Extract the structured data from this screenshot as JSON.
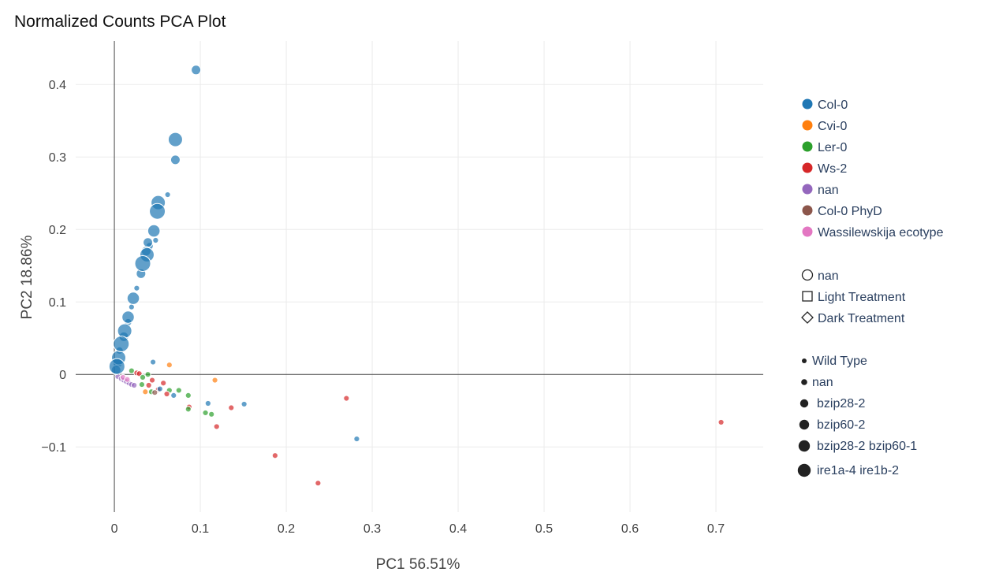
{
  "chart_data": {
    "type": "scatter",
    "title": "Normalized Counts PCA Plot",
    "xlabel": "PC1 56.51%",
    "ylabel": "PC2 18.86%",
    "xlim": [
      -0.045,
      0.755
    ],
    "ylim": [
      -0.19,
      0.46
    ],
    "x_ticks": [
      0,
      0.1,
      0.2,
      0.3,
      0.4,
      0.5,
      0.6,
      0.7
    ],
    "x_tick_labels": [
      "0",
      "0.1",
      "0.2",
      "0.3",
      "0.4",
      "0.5",
      "0.6",
      "0.7"
    ],
    "y_ticks": [
      -0.1,
      0,
      0.1,
      0.2,
      0.3,
      0.4
    ],
    "y_tick_labels": [
      "−0.1",
      "0",
      "0.1",
      "0.2",
      "0.3",
      "0.4"
    ],
    "grid": true,
    "legend_position": "right",
    "color_legend": [
      {
        "label": "Col-0",
        "color": "#1f77b4"
      },
      {
        "label": "Cvi-0",
        "color": "#ff7f0e"
      },
      {
        "label": "Ler-0",
        "color": "#2ca02c"
      },
      {
        "label": "Ws-2",
        "color": "#d62728"
      },
      {
        "label": "nan",
        "color": "#9467bd"
      },
      {
        "label": "Col-0 PhyD",
        "color": "#8c564b"
      },
      {
        "label": "Wassilewskija ecotype",
        "color": "#e377c2"
      }
    ],
    "shape_legend": [
      {
        "label": "nan",
        "symbol": "circle"
      },
      {
        "label": "Light Treatment",
        "symbol": "square"
      },
      {
        "label": "Dark Treatment",
        "symbol": "diamond"
      }
    ],
    "size_legend": [
      {
        "label": "Wild Type",
        "size": 1
      },
      {
        "label": "nan",
        "size": 2
      },
      {
        "label": "bzip28-2",
        "size": 3
      },
      {
        "label": "bzip60-2",
        "size": 4
      },
      {
        "label": "bzip28-2 bzip60-1",
        "size": 5
      },
      {
        "label": "ire1a-4 ire1b-2",
        "size": 6
      }
    ],
    "points": [
      {
        "x": 0.095,
        "y": 0.42,
        "color": "#1f77b4",
        "size": 3
      },
      {
        "x": 0.071,
        "y": 0.324,
        "color": "#1f77b4",
        "size": 5
      },
      {
        "x": 0.071,
        "y": 0.296,
        "color": "#1f77b4",
        "size": 3
      },
      {
        "x": 0.062,
        "y": 0.248,
        "color": "#1f77b4",
        "size": 1
      },
      {
        "x": 0.051,
        "y": 0.237,
        "color": "#1f77b4",
        "size": 5
      },
      {
        "x": 0.05,
        "y": 0.225,
        "color": "#1f77b4",
        "size": 6
      },
      {
        "x": 0.046,
        "y": 0.198,
        "color": "#1f77b4",
        "size": 4
      },
      {
        "x": 0.048,
        "y": 0.185,
        "color": "#1f77b4",
        "size": 1
      },
      {
        "x": 0.039,
        "y": 0.182,
        "color": "#1f77b4",
        "size": 3
      },
      {
        "x": 0.041,
        "y": 0.177,
        "color": "#1f77b4",
        "size": 2
      },
      {
        "x": 0.037,
        "y": 0.17,
        "color": "#1f77b4",
        "size": 3
      },
      {
        "x": 0.038,
        "y": 0.165,
        "color": "#1f77b4",
        "size": 5
      },
      {
        "x": 0.033,
        "y": 0.153,
        "color": "#1f77b4",
        "size": 6
      },
      {
        "x": 0.031,
        "y": 0.139,
        "color": "#1f77b4",
        "size": 3
      },
      {
        "x": 0.026,
        "y": 0.119,
        "color": "#1f77b4",
        "size": 1
      },
      {
        "x": 0.022,
        "y": 0.105,
        "color": "#1f77b4",
        "size": 4
      },
      {
        "x": 0.02,
        "y": 0.093,
        "color": "#1f77b4",
        "size": 1
      },
      {
        "x": 0.016,
        "y": 0.079,
        "color": "#1f77b4",
        "size": 4
      },
      {
        "x": 0.016,
        "y": 0.072,
        "color": "#1f77b4",
        "size": 2
      },
      {
        "x": 0.012,
        "y": 0.06,
        "color": "#1f77b4",
        "size": 5
      },
      {
        "x": 0.011,
        "y": 0.052,
        "color": "#1f77b4",
        "size": 3
      },
      {
        "x": 0.008,
        "y": 0.042,
        "color": "#1f77b4",
        "size": 6
      },
      {
        "x": 0.006,
        "y": 0.033,
        "color": "#1f77b4",
        "size": 2
      },
      {
        "x": 0.005,
        "y": 0.023,
        "color": "#1f77b4",
        "size": 5
      },
      {
        "x": 0.004,
        "y": 0.016,
        "color": "#1f77b4",
        "size": 3
      },
      {
        "x": 0.003,
        "y": 0.011,
        "color": "#1f77b4",
        "size": 6
      },
      {
        "x": 0.002,
        "y": 0.006,
        "color": "#1f77b4",
        "size": 3
      },
      {
        "x": 0.045,
        "y": 0.017,
        "color": "#1f77b4",
        "size": 1
      },
      {
        "x": 0.064,
        "y": 0.013,
        "color": "#ff7f0e",
        "size": 1
      },
      {
        "x": 0.117,
        "y": -0.008,
        "color": "#ff7f0e",
        "size": 1
      },
      {
        "x": 0.02,
        "y": 0.005,
        "color": "#2ca02c",
        "size": 1
      },
      {
        "x": 0.026,
        "y": 0.002,
        "color": "#d62728",
        "size": 1
      },
      {
        "x": 0.029,
        "y": 0.001,
        "color": "#d62728",
        "size": 1
      },
      {
        "x": 0.039,
        "y": 0.0,
        "color": "#2ca02c",
        "size": 1
      },
      {
        "x": 0.033,
        "y": -0.004,
        "color": "#2ca02c",
        "size": 1
      },
      {
        "x": 0.044,
        "y": -0.008,
        "color": "#d62728",
        "size": 1
      },
      {
        "x": 0.057,
        "y": -0.012,
        "color": "#d62728",
        "size": 1
      },
      {
        "x": 0.032,
        "y": -0.014,
        "color": "#2ca02c",
        "size": 1
      },
      {
        "x": 0.04,
        "y": -0.015,
        "color": "#d62728",
        "size": 1
      },
      {
        "x": 0.051,
        "y": -0.021,
        "color": "#d62728",
        "size": 1
      },
      {
        "x": 0.053,
        "y": -0.02,
        "color": "#1f77b4",
        "size": 1
      },
      {
        "x": 0.036,
        "y": -0.024,
        "color": "#ff7f0e",
        "size": 1
      },
      {
        "x": 0.043,
        "y": -0.024,
        "color": "#2ca02c",
        "size": 1
      },
      {
        "x": 0.047,
        "y": -0.025,
        "color": "#8c564b",
        "size": 1
      },
      {
        "x": 0.064,
        "y": -0.022,
        "color": "#2ca02c",
        "size": 1
      },
      {
        "x": 0.075,
        "y": -0.022,
        "color": "#2ca02c",
        "size": 1
      },
      {
        "x": 0.061,
        "y": -0.027,
        "color": "#d62728",
        "size": 1
      },
      {
        "x": 0.069,
        "y": -0.029,
        "color": "#1f77b4",
        "size": 1
      },
      {
        "x": 0.086,
        "y": -0.029,
        "color": "#2ca02c",
        "size": 1
      },
      {
        "x": 0.087,
        "y": -0.045,
        "color": "#d62728",
        "size": 1
      },
      {
        "x": 0.086,
        "y": -0.048,
        "color": "#2ca02c",
        "size": 1
      },
      {
        "x": 0.109,
        "y": -0.04,
        "color": "#1f77b4",
        "size": 1
      },
      {
        "x": 0.106,
        "y": -0.053,
        "color": "#2ca02c",
        "size": 1
      },
      {
        "x": 0.113,
        "y": -0.055,
        "color": "#2ca02c",
        "size": 1
      },
      {
        "x": 0.136,
        "y": -0.046,
        "color": "#d62728",
        "size": 1
      },
      {
        "x": 0.151,
        "y": -0.041,
        "color": "#1f77b4",
        "size": 1
      },
      {
        "x": 0.119,
        "y": -0.072,
        "color": "#d62728",
        "size": 1
      },
      {
        "x": 0.187,
        "y": -0.112,
        "color": "#d62728",
        "size": 1
      },
      {
        "x": 0.237,
        "y": -0.15,
        "color": "#d62728",
        "size": 1
      },
      {
        "x": 0.27,
        "y": -0.033,
        "color": "#d62728",
        "size": 1
      },
      {
        "x": 0.282,
        "y": -0.089,
        "color": "#1f77b4",
        "size": 1
      },
      {
        "x": 0.706,
        "y": -0.066,
        "color": "#d62728",
        "size": 1
      },
      {
        "x": 0.004,
        "y": -0.003,
        "color": "#9467bd",
        "size": 1
      },
      {
        "x": 0.008,
        "y": -0.006,
        "color": "#9467bd",
        "size": 1
      },
      {
        "x": 0.011,
        "y": -0.008,
        "color": "#9467bd",
        "size": 1
      },
      {
        "x": 0.014,
        "y": -0.01,
        "color": "#9467bd",
        "size": 1
      },
      {
        "x": 0.017,
        "y": -0.012,
        "color": "#9467bd",
        "size": 1
      },
      {
        "x": 0.02,
        "y": -0.014,
        "color": "#9467bd",
        "size": 1
      },
      {
        "x": 0.023,
        "y": -0.015,
        "color": "#9467bd",
        "size": 1
      },
      {
        "x": 0.01,
        "y": -0.004,
        "color": "#e377c2",
        "size": 1
      },
      {
        "x": 0.015,
        "y": -0.007,
        "color": "#e377c2",
        "size": 1
      }
    ]
  }
}
